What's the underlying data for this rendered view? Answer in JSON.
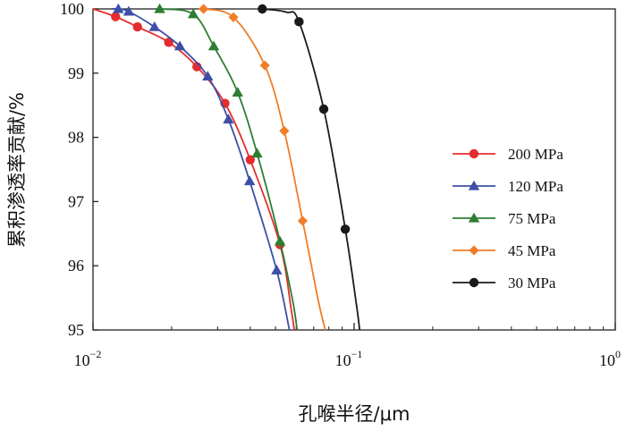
{
  "chart_data": {
    "type": "line",
    "xscale": "log",
    "xlim": [
      0.01,
      1
    ],
    "ylim": [
      95,
      100
    ],
    "x_tick_labels": [
      {
        "value": 0.01,
        "base": "10",
        "exp": "−2"
      },
      {
        "value": 0.1,
        "base": "10",
        "exp": "−1"
      },
      {
        "value": 1,
        "base": "10",
        "exp": "0"
      }
    ],
    "y_ticks": [
      "95",
      "96",
      "97",
      "98",
      "99",
      "100"
    ],
    "xlabel": "孔喉半径/μm",
    "ylabel": "累积渗透率贡献/%",
    "legend_position": "right",
    "series": [
      {
        "name": "200 MPa",
        "color": "#e52d2d",
        "marker": "circle",
        "x": [
          0.0122,
          0.0148,
          0.0195,
          0.025,
          0.032,
          0.04,
          0.052
        ],
        "y": [
          99.88,
          99.72,
          99.48,
          99.1,
          98.53,
          97.65,
          96.33
        ],
        "curve": [
          [
            0.01,
            100.0
          ],
          [
            0.0122,
            99.88
          ],
          [
            0.0148,
            99.72
          ],
          [
            0.0195,
            99.48
          ],
          [
            0.025,
            99.1
          ],
          [
            0.032,
            98.53
          ],
          [
            0.04,
            97.65
          ],
          [
            0.052,
            96.33
          ],
          [
            0.0575,
            95.3
          ],
          [
            0.059,
            95.0
          ]
        ]
      },
      {
        "name": "120 MPa",
        "color": "#3d4fa6",
        "marker": "triangle",
        "x": [
          0.0125,
          0.0137,
          0.0172,
          0.0215,
          0.0275,
          0.033,
          0.0398,
          0.0505
        ],
        "y": [
          100.0,
          99.96,
          99.72,
          99.42,
          98.95,
          98.28,
          97.32,
          95.93
        ],
        "curve": [
          [
            0.0118,
            100.0
          ],
          [
            0.0125,
            100.0
          ],
          [
            0.0137,
            99.96
          ],
          [
            0.0172,
            99.72
          ],
          [
            0.0215,
            99.42
          ],
          [
            0.0275,
            98.95
          ],
          [
            0.033,
            98.28
          ],
          [
            0.0398,
            97.32
          ],
          [
            0.0505,
            95.93
          ],
          [
            0.0565,
            95.0
          ]
        ]
      },
      {
        "name": "75 MPa",
        "color": "#2d7d32",
        "marker": "triangle",
        "x": [
          0.018,
          0.0242,
          0.029,
          0.0358,
          0.0425,
          0.052
        ],
        "y": [
          100.0,
          99.92,
          99.42,
          98.7,
          97.75,
          96.38
        ],
        "curve": [
          [
            0.018,
            100.0
          ],
          [
            0.0242,
            99.92
          ],
          [
            0.029,
            99.42
          ],
          [
            0.0358,
            98.7
          ],
          [
            0.0425,
            97.75
          ],
          [
            0.052,
            96.38
          ],
          [
            0.0582,
            95.45
          ],
          [
            0.0605,
            95.0
          ]
        ]
      },
      {
        "name": "45 MPa",
        "color": "#f07d28",
        "marker": "diamond",
        "x": [
          0.0265,
          0.0345,
          0.0455,
          0.054,
          0.0635
        ],
        "y": [
          100.0,
          99.87,
          99.12,
          98.1,
          96.7
        ],
        "curve": [
          [
            0.0265,
            100.0
          ],
          [
            0.0345,
            99.87
          ],
          [
            0.0455,
            99.12
          ],
          [
            0.054,
            98.1
          ],
          [
            0.0635,
            96.7
          ],
          [
            0.0725,
            95.5
          ],
          [
            0.0775,
            95.0
          ]
        ]
      },
      {
        "name": "30 MPa",
        "color": "#1a1a1a",
        "marker": "circle",
        "x": [
          0.0445,
          0.0615,
          0.0765,
          0.0925
        ],
        "y": [
          100.0,
          99.8,
          98.44,
          96.57
        ],
        "curve": [
          [
            0.0445,
            100.0
          ],
          [
            0.055,
            99.95
          ],
          [
            0.0615,
            99.8
          ],
          [
            0.0765,
            98.44
          ],
          [
            0.0925,
            96.57
          ],
          [
            0.102,
            95.4
          ],
          [
            0.105,
            95.0
          ]
        ]
      }
    ]
  }
}
